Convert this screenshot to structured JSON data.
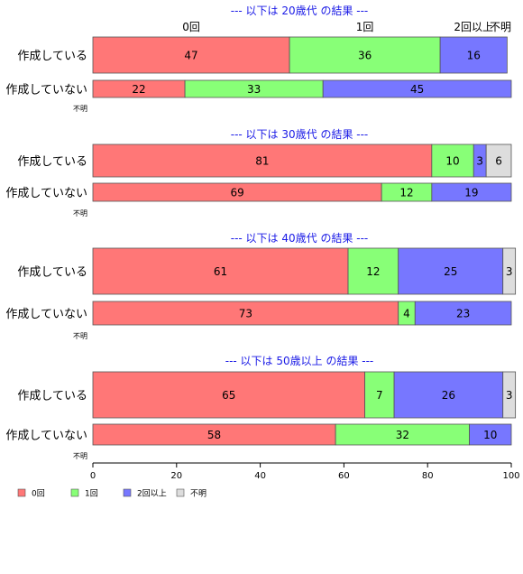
{
  "chart_data": {
    "type": "bar",
    "orientation": "horizontal",
    "stacked": true,
    "xlim": [
      0,
      100
    ],
    "x_ticks": [
      0,
      20,
      40,
      60,
      80,
      100
    ],
    "categories": [
      "0回",
      "1回",
      "2回以上",
      "不明"
    ],
    "colors": [
      "#ff7777",
      "#88ff77",
      "#7777ff",
      "#dddddd"
    ],
    "header_labels": [
      {
        "text": "0回",
        "value": 23.5
      },
      {
        "text": "1回",
        "value": 65
      },
      {
        "text": "2回以上",
        "value": 91
      },
      {
        "text": "不明",
        "value": 100
      }
    ],
    "unknown_row_label": "不明",
    "groups": [
      {
        "title": "--- 以下は 20歳代 の結果 ---",
        "rows": [
          {
            "label": "作成している",
            "values": [
              47,
              36,
              16,
              0
            ]
          },
          {
            "label": "作成していない",
            "values": [
              22,
              33,
              45,
              0
            ]
          }
        ]
      },
      {
        "title": "--- 以下は 30歳代 の結果 ---",
        "rows": [
          {
            "label": "作成している",
            "values": [
              81,
              10,
              3,
              6
            ]
          },
          {
            "label": "作成していない",
            "values": [
              69,
              12,
              19,
              0
            ]
          }
        ]
      },
      {
        "title": "--- 以下は 40歳代 の結果 ---",
        "rows": [
          {
            "label": "作成している",
            "values": [
              61,
              12,
              25,
              3
            ]
          },
          {
            "label": "作成していない",
            "values": [
              73,
              4,
              23,
              0
            ]
          }
        ]
      },
      {
        "title": "--- 以下は 50歳以上 の結果 ---",
        "rows": [
          {
            "label": "作成している",
            "values": [
              65,
              7,
              26,
              3
            ]
          },
          {
            "label": "作成していない",
            "values": [
              58,
              32,
              10,
              0
            ]
          }
        ]
      }
    ],
    "legend": {
      "placement": "bottom-left",
      "items": [
        "0回",
        "1回",
        "2回以上",
        "不明"
      ]
    }
  }
}
